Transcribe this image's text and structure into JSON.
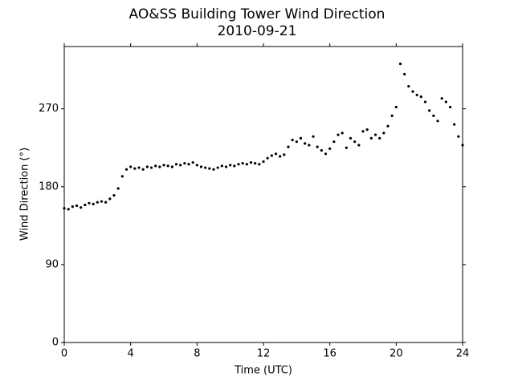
{
  "chart_data": {
    "type": "scatter",
    "title": "AO&SS Building Tower Wind Direction",
    "subtitle": "2010-09-21",
    "x_label": "Time (UTC)",
    "y_label": "Wind Direction (°)",
    "color": "#000000",
    "xlim": [
      0,
      24
    ],
    "xticks": [
      0,
      4,
      8,
      12,
      16,
      20,
      24
    ],
    "ylim": [
      0,
      342
    ],
    "yticks": [
      0,
      90,
      180,
      270
    ],
    "x": [
      0,
      0.25,
      0.5,
      0.75,
      1,
      1.25,
      1.5,
      1.75,
      2,
      2.25,
      2.5,
      2.75,
      3,
      3.25,
      3.5,
      3.75,
      4,
      4.25,
      4.5,
      4.75,
      5,
      5.25,
      5.5,
      5.75,
      6,
      6.25,
      6.5,
      6.75,
      7,
      7.25,
      7.5,
      7.75,
      8,
      8.25,
      8.5,
      8.75,
      9,
      9.25,
      9.5,
      9.75,
      10,
      10.25,
      10.5,
      10.75,
      11,
      11.25,
      11.5,
      11.75,
      12,
      12.25,
      12.5,
      12.75,
      13,
      13.25,
      13.5,
      13.75,
      14,
      14.25,
      14.5,
      14.75,
      15,
      15.25,
      15.5,
      15.75,
      16,
      16.25,
      16.5,
      16.75,
      17,
      17.25,
      17.5,
      17.75,
      18,
      18.25,
      18.5,
      18.75,
      19,
      19.25,
      19.5,
      19.75,
      20,
      20.25,
      20.5,
      20.75,
      21,
      21.25,
      21.5,
      21.75,
      22,
      22.25,
      22.5,
      22.75,
      23,
      23.25,
      23.5,
      23.75,
      24
    ],
    "values": [
      155,
      154,
      157,
      158,
      156,
      159,
      161,
      160,
      162,
      163,
      162,
      166,
      170,
      178,
      192,
      200,
      203,
      201,
      202,
      200,
      203,
      202,
      204,
      203,
      205,
      204,
      203,
      206,
      205,
      207,
      206,
      208,
      205,
      203,
      202,
      201,
      200,
      202,
      204,
      203,
      205,
      204,
      206,
      207,
      206,
      208,
      207,
      206,
      209,
      213,
      216,
      218,
      215,
      217,
      226,
      234,
      232,
      236,
      230,
      228,
      238,
      226,
      222,
      218,
      224,
      232,
      240,
      242,
      225,
      236,
      232,
      228,
      244,
      246,
      236,
      240,
      236,
      242,
      250,
      262,
      272,
      322,
      310,
      296,
      290,
      286,
      284,
      278,
      268,
      262,
      256,
      282,
      278,
      272,
      252,
      238,
      228
    ]
  }
}
